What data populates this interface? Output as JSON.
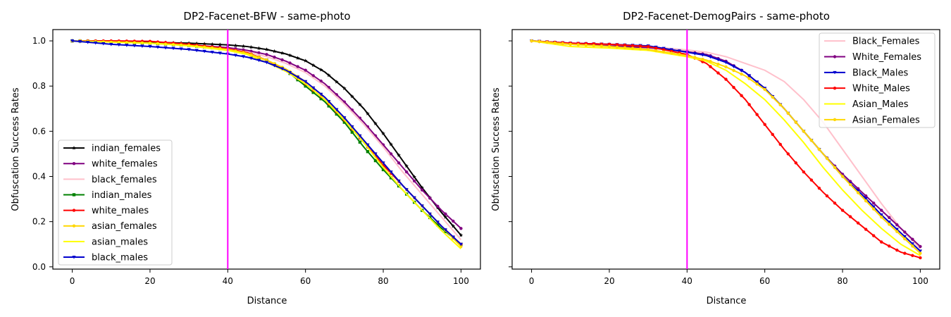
{
  "chart_data": [
    {
      "type": "line",
      "title": "DP2-Facenet-BFW - same-photo",
      "xlabel": "Distance",
      "ylabel": "Obfuscation Success Rates",
      "xlim": [
        -5,
        105
      ],
      "ylim": [
        -0.01,
        1.05
      ],
      "xticks": [
        "0",
        "20",
        "40",
        "60",
        "80",
        "100"
      ],
      "yticks": [
        "0.0",
        "0.2",
        "0.4",
        "0.6",
        "0.8",
        "1.0"
      ],
      "legend_position": "lower-left",
      "vline": {
        "x": 40,
        "color": "#ff00ff"
      },
      "x": [
        0,
        10,
        20,
        30,
        40,
        45,
        50,
        55,
        60,
        65,
        70,
        75,
        80,
        85,
        90,
        95,
        100
      ],
      "series": [
        {
          "name": "indian_females",
          "color": "#000000",
          "marker": "star",
          "values": [
            1.0,
            0.997,
            0.994,
            0.99,
            0.982,
            0.975,
            0.962,
            0.942,
            0.912,
            0.862,
            0.79,
            0.7,
            0.59,
            0.47,
            0.35,
            0.24,
            0.14
          ]
        },
        {
          "name": "white_females",
          "color": "#800080",
          "marker": "circle",
          "values": [
            1.0,
            0.996,
            0.99,
            0.982,
            0.97,
            0.958,
            0.94,
            0.91,
            0.87,
            0.81,
            0.73,
            0.64,
            0.54,
            0.44,
            0.34,
            0.25,
            0.17
          ]
        },
        {
          "name": "black_females",
          "color": "#ffc0cb",
          "marker": "none",
          "values": [
            1.0,
            0.995,
            0.99,
            0.98,
            0.965,
            0.952,
            0.93,
            0.9,
            0.86,
            0.8,
            0.72,
            0.63,
            0.53,
            0.42,
            0.32,
            0.22,
            0.12
          ]
        },
        {
          "name": "indian_males",
          "color": "#008000",
          "marker": "square",
          "values": [
            1.0,
            0.996,
            0.99,
            0.98,
            0.962,
            0.945,
            0.915,
            0.87,
            0.8,
            0.73,
            0.64,
            0.53,
            0.43,
            0.34,
            0.25,
            0.17,
            0.1
          ]
        },
        {
          "name": "white_males",
          "color": "#ff0000",
          "marker": "circle",
          "values": [
            1.0,
            1.0,
            0.998,
            0.985,
            0.965,
            0.948,
            0.915,
            0.87,
            0.81,
            0.74,
            0.65,
            0.55,
            0.45,
            0.36,
            0.27,
            0.18,
            0.1
          ]
        },
        {
          "name": "asian_females",
          "color": "#ffd700",
          "marker": "circle",
          "values": [
            1.0,
            0.995,
            0.99,
            0.98,
            0.962,
            0.945,
            0.915,
            0.875,
            0.82,
            0.75,
            0.66,
            0.56,
            0.46,
            0.36,
            0.27,
            0.18,
            0.09
          ]
        },
        {
          "name": "asian_males",
          "color": "#ffff00",
          "marker": "none",
          "values": [
            1.0,
            0.995,
            0.99,
            0.978,
            0.958,
            0.94,
            0.905,
            0.865,
            0.81,
            0.74,
            0.65,
            0.55,
            0.44,
            0.34,
            0.25,
            0.16,
            0.08
          ]
        },
        {
          "name": "black_males",
          "color": "#0000cd",
          "marker": "triangle",
          "values": [
            1.0,
            0.985,
            0.975,
            0.962,
            0.942,
            0.928,
            0.905,
            0.87,
            0.82,
            0.75,
            0.66,
            0.56,
            0.46,
            0.36,
            0.27,
            0.18,
            0.1
          ]
        }
      ]
    },
    {
      "type": "line",
      "title": "DP2-Facenet-DemogPairs - same-photo",
      "xlabel": "Distance",
      "ylabel": "Obfuscation Success Rates",
      "xlim": [
        -5,
        105
      ],
      "ylim": [
        -0.01,
        1.05
      ],
      "xticks": [
        "0",
        "20",
        "40",
        "60",
        "80",
        "100"
      ],
      "yticks": [],
      "legend_position": "upper-right",
      "vline": {
        "x": 40,
        "color": "#ff00ff"
      },
      "x": [
        0,
        10,
        20,
        30,
        40,
        45,
        50,
        55,
        60,
        65,
        70,
        75,
        80,
        85,
        90,
        95,
        100
      ],
      "series": [
        {
          "name": "Black_Females",
          "color": "#ffc0cb",
          "marker": "none",
          "values": [
            1.0,
            0.99,
            0.985,
            0.975,
            0.96,
            0.95,
            0.93,
            0.9,
            0.87,
            0.82,
            0.74,
            0.64,
            0.52,
            0.4,
            0.28,
            0.17,
            0.08
          ]
        },
        {
          "name": "White_Females",
          "color": "#800080",
          "marker": "circle",
          "values": [
            1.0,
            0.985,
            0.978,
            0.97,
            0.952,
            0.94,
            0.91,
            0.86,
            0.79,
            0.7,
            0.6,
            0.5,
            0.41,
            0.33,
            0.25,
            0.17,
            0.09
          ]
        },
        {
          "name": "Black_Males",
          "color": "#0000cd",
          "marker": "triangle",
          "values": [
            1.0,
            0.99,
            0.985,
            0.978,
            0.95,
            0.935,
            0.905,
            0.86,
            0.79,
            0.7,
            0.6,
            0.5,
            0.4,
            0.32,
            0.23,
            0.15,
            0.07
          ]
        },
        {
          "name": "White_Males",
          "color": "#ff0000",
          "marker": "circle",
          "values": [
            1.0,
            0.99,
            0.985,
            0.975,
            0.94,
            0.9,
            0.83,
            0.74,
            0.63,
            0.52,
            0.42,
            0.33,
            0.25,
            0.18,
            0.11,
            0.065,
            0.04
          ]
        },
        {
          "name": "Asian_Males",
          "color": "#ffff00",
          "marker": "none",
          "values": [
            1.0,
            0.975,
            0.968,
            0.958,
            0.93,
            0.91,
            0.87,
            0.81,
            0.74,
            0.65,
            0.55,
            0.44,
            0.34,
            0.25,
            0.17,
            0.1,
            0.05
          ]
        },
        {
          "name": "Asian_Females",
          "color": "#ffd700",
          "marker": "circle",
          "values": [
            1.0,
            0.985,
            0.975,
            0.962,
            0.935,
            0.915,
            0.885,
            0.845,
            0.785,
            0.7,
            0.6,
            0.5,
            0.4,
            0.31,
            0.22,
            0.14,
            0.06
          ]
        }
      ]
    }
  ]
}
